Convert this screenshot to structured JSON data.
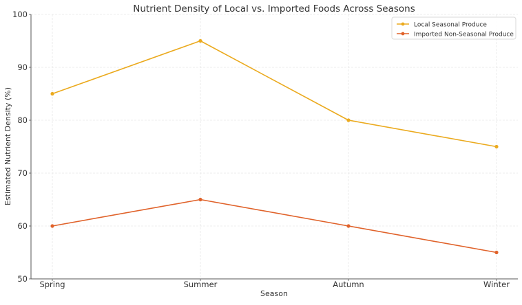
{
  "chart_data": {
    "type": "line",
    "title": "Nutrient Density of Local vs. Imported Foods Across Seasons",
    "xlabel": "Season",
    "ylabel": "Estimated Nutrient Density (%)",
    "categories": [
      "Spring",
      "Summer",
      "Autumn",
      "Winter"
    ],
    "ylim": [
      50,
      100
    ],
    "yticks": [
      50,
      60,
      70,
      80,
      90,
      100
    ],
    "grid": true,
    "legend_position": "top-right",
    "series": [
      {
        "name": "Local Seasonal Produce",
        "values": [
          85,
          95,
          80,
          75
        ],
        "color": "#EBAA1E"
      },
      {
        "name": "Imported Non-Seasonal Produce",
        "values": [
          60,
          65,
          60,
          55
        ],
        "color": "#E0622A"
      }
    ]
  }
}
